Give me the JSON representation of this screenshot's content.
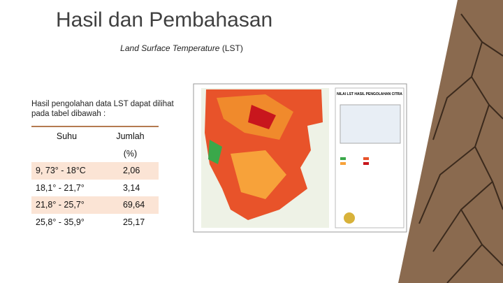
{
  "header": {
    "title": "Hasil dan Pembahasan",
    "subtitle_italic": "Land Surface Temperature",
    "subtitle_rest": "(LST)"
  },
  "body": {
    "paragraph": "Hasil pengolahan data LST dapat dilihat pada tabel dibawah :"
  },
  "table": {
    "header": [
      "Suhu",
      "Jumlah"
    ],
    "unit": "(%)",
    "rows": [
      [
        "9, 73° - 18°C",
        "2,06"
      ],
      [
        "18,1° - 21,7°",
        "3,14"
      ],
      [
        "21,8° - 25,7°",
        "69,64"
      ],
      [
        "25,8° - 35,9°",
        "25,17"
      ]
    ]
  },
  "map": {
    "title": "NILAI LST HASIL PENGOLAHAN CITRA"
  }
}
